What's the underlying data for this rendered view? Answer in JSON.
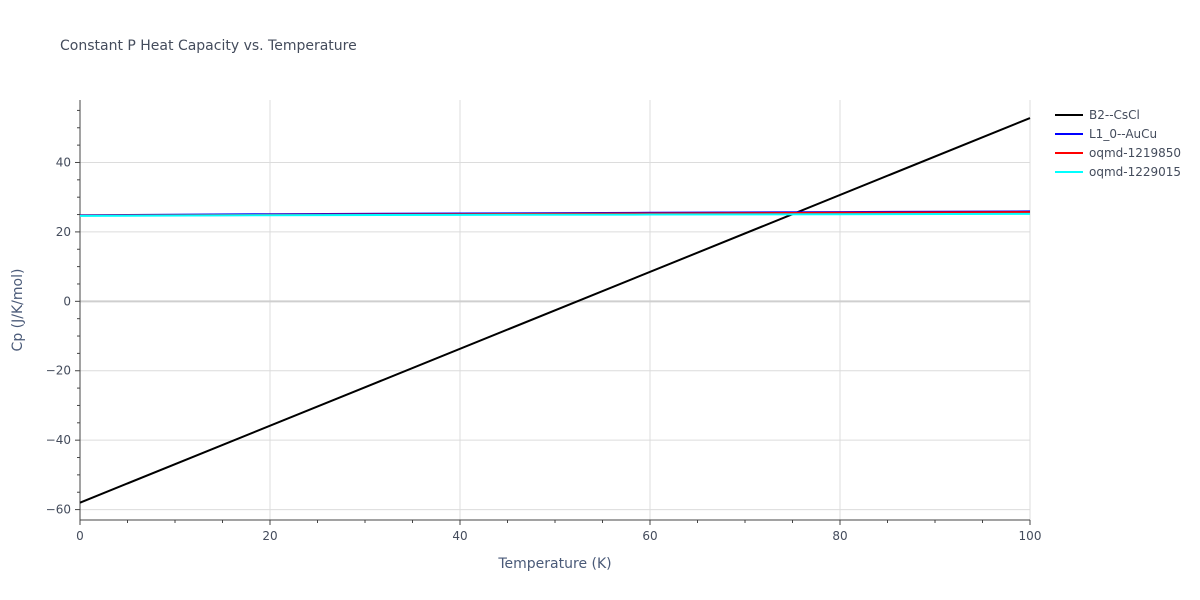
{
  "chart_data": {
    "type": "line",
    "title": "Constant P Heat Capacity vs. Temperature",
    "xlabel": "Temperature (K)",
    "ylabel": "Cp (J/K/mol)",
    "xlim": [
      0,
      100
    ],
    "ylim": [
      -63,
      58
    ],
    "x_ticks": [
      0,
      20,
      40,
      60,
      80,
      100
    ],
    "y_ticks": [
      -60,
      -40,
      -20,
      0,
      20,
      40
    ],
    "x_tick_labels": [
      "0",
      "20",
      "40",
      "60",
      "80",
      "100"
    ],
    "y_tick_labels": [
      "−60",
      "−40",
      "−20",
      "0",
      "20",
      "40"
    ],
    "grid": true,
    "legend_position": "top-right, outside plot",
    "series": [
      {
        "name": "B2--CsCl",
        "color": "#000000",
        "x": [
          0,
          100
        ],
        "y": [
          -58,
          52.8
        ]
      },
      {
        "name": "L1_0--AuCu",
        "color": "#0000ff",
        "x": [
          0,
          20,
          40,
          60,
          80,
          100
        ],
        "y": [
          24.8,
          25.1,
          25.3,
          25.5,
          25.7,
          25.9
        ]
      },
      {
        "name": "oqmd-1219850",
        "color": "#ff0000",
        "x": [
          0,
          20,
          40,
          60,
          80,
          100
        ],
        "y": [
          24.7,
          24.9,
          25.1,
          25.3,
          25.5,
          25.7
        ]
      },
      {
        "name": "oqmd-1229015",
        "color": "#00ffff",
        "x": [
          0,
          20,
          40,
          60,
          80,
          100
        ],
        "y": [
          24.6,
          24.8,
          24.9,
          25.0,
          25.1,
          25.2
        ]
      }
    ]
  }
}
